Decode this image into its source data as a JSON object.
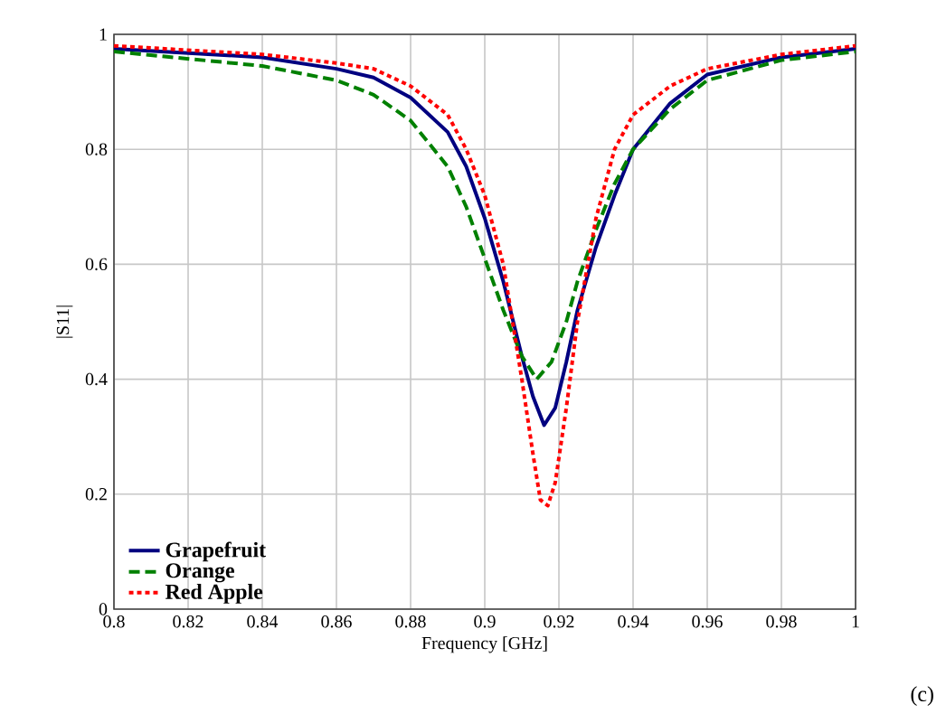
{
  "chart_data": {
    "type": "line",
    "xlabel": "Frequency [GHz]",
    "ylabel": "|S11|",
    "xlim": [
      0.8,
      1
    ],
    "ylim": [
      0,
      1
    ],
    "xticks": [
      0.8,
      0.82,
      0.84,
      0.86,
      0.88,
      0.9,
      0.92,
      0.94,
      0.96,
      0.98,
      1
    ],
    "yticks": [
      0,
      0.2,
      0.4,
      0.6,
      0.8,
      1
    ],
    "grid": true,
    "legend": "bottom left",
    "annotations": [
      "(c)"
    ],
    "series": [
      {
        "name": "Grapefruit",
        "color": "#000080",
        "line_style": "solid",
        "x": [
          0.8,
          0.84,
          0.86,
          0.87,
          0.88,
          0.89,
          0.895,
          0.9,
          0.905,
          0.91,
          0.913,
          0.916,
          0.919,
          0.922,
          0.925,
          0.93,
          0.935,
          0.94,
          0.95,
          0.96,
          0.98,
          1.0
        ],
        "values": [
          0.975,
          0.96,
          0.94,
          0.925,
          0.89,
          0.83,
          0.77,
          0.68,
          0.57,
          0.44,
          0.37,
          0.32,
          0.35,
          0.43,
          0.52,
          0.63,
          0.72,
          0.8,
          0.88,
          0.93,
          0.96,
          0.975
        ]
      },
      {
        "name": "Orange",
        "color": "#008000",
        "line_style": "dashed",
        "x": [
          0.8,
          0.84,
          0.86,
          0.87,
          0.88,
          0.89,
          0.895,
          0.9,
          0.905,
          0.91,
          0.914,
          0.918,
          0.922,
          0.925,
          0.93,
          0.935,
          0.94,
          0.95,
          0.96,
          0.98,
          1.0
        ],
        "values": [
          0.97,
          0.945,
          0.92,
          0.895,
          0.85,
          0.77,
          0.7,
          0.61,
          0.52,
          0.44,
          0.4,
          0.43,
          0.5,
          0.57,
          0.66,
          0.74,
          0.8,
          0.87,
          0.92,
          0.955,
          0.97
        ]
      },
      {
        "name": "Red Apple",
        "color": "#ff0000",
        "line_style": "dotted",
        "x": [
          0.8,
          0.84,
          0.86,
          0.87,
          0.88,
          0.89,
          0.895,
          0.9,
          0.905,
          0.91,
          0.913,
          0.915,
          0.917,
          0.919,
          0.922,
          0.925,
          0.93,
          0.935,
          0.94,
          0.95,
          0.96,
          0.98,
          1.0
        ],
        "values": [
          0.98,
          0.965,
          0.95,
          0.94,
          0.91,
          0.86,
          0.8,
          0.72,
          0.6,
          0.4,
          0.27,
          0.19,
          0.18,
          0.22,
          0.35,
          0.5,
          0.68,
          0.8,
          0.86,
          0.91,
          0.94,
          0.965,
          0.98
        ]
      }
    ]
  }
}
